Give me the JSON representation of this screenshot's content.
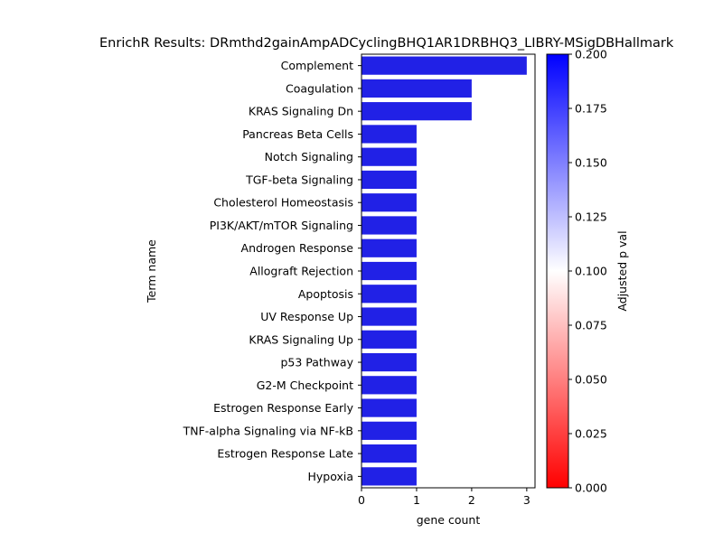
{
  "chart_data": {
    "type": "bar",
    "orientation": "horizontal",
    "title": "EnrichR Results: DRmthd2gainAmpADCyclingBHQ1AR1DRBHQ3_LIBRY-MSigDBHallmark",
    "xlabel": "gene count",
    "ylabel": "Term name",
    "categories": [
      "Complement",
      "Coagulation",
      "KRAS Signaling Dn",
      "Pancreas Beta Cells",
      "Notch Signaling",
      "TGF-beta Signaling",
      "Cholesterol Homeostasis",
      "PI3K/AKT/mTOR  Signaling",
      "Androgen Response",
      "Allograft Rejection",
      "Apoptosis",
      "UV Response Up",
      "KRAS Signaling Up",
      "p53 Pathway",
      "G2-M Checkpoint",
      "Estrogen Response Early",
      "TNF-alpha Signaling via NF-kB",
      "Estrogen Response Late",
      "Hypoxia"
    ],
    "values": [
      3,
      2,
      2,
      1,
      1,
      1,
      1,
      1,
      1,
      1,
      1,
      1,
      1,
      1,
      1,
      1,
      1,
      1,
      1
    ],
    "bar_color": "#2121e6",
    "xlim": [
      0,
      3.15
    ],
    "xticks": [
      "0",
      "1",
      "2",
      "3"
    ],
    "grid": false,
    "legend": "none",
    "colorbar": {
      "label": "Adjusted p val",
      "range": [
        0,
        0.2
      ],
      "ticks": [
        "0.000",
        "0.025",
        "0.050",
        "0.075",
        "0.100",
        "0.125",
        "0.150",
        "0.175",
        "0.200"
      ],
      "colormap": "bwr_r",
      "color_low": "#ff0000",
      "color_mid": "#ffffff",
      "color_high": "#0000ff"
    }
  }
}
